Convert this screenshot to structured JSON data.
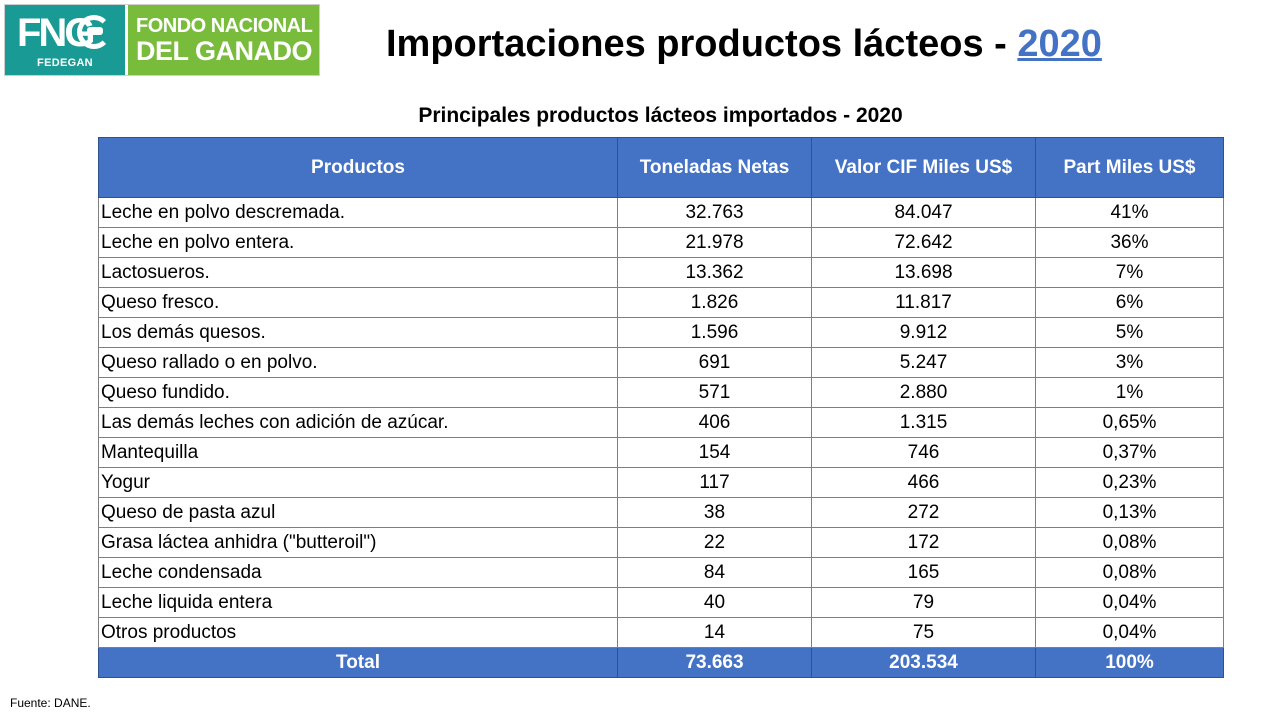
{
  "logo": {
    "acronym": "FNG",
    "sub": "FEDEGAN",
    "line1": "FONDO NACIONAL",
    "line2": "DEL GANADO",
    "colors": {
      "teal": "#1a9a94",
      "green": "#79bc3c"
    }
  },
  "header": {
    "title_prefix": "Importaciones productos lácteos - ",
    "title_year": "2020",
    "year_color": "#4472c4"
  },
  "table": {
    "caption": "Principales productos lácteos importados - 2020",
    "header_color": "#4472c4",
    "columns": [
      "Productos",
      "Toneladas Netas",
      "Valor  CIF Miles US$",
      "Part Miles US$"
    ],
    "rows": [
      {
        "product": "Leche en polvo descremada.",
        "tons": "32.763",
        "value": "84.047",
        "share": "41%"
      },
      {
        "product": "Leche en polvo entera.",
        "tons": "21.978",
        "value": "72.642",
        "share": "36%"
      },
      {
        "product": "Lactosueros.",
        "tons": "13.362",
        "value": "13.698",
        "share": "7%"
      },
      {
        "product": "Queso fresco.",
        "tons": "1.826",
        "value": "11.817",
        "share": "6%"
      },
      {
        "product": "Los demás quesos.",
        "tons": "1.596",
        "value": "9.912",
        "share": "5%"
      },
      {
        "product": "Queso rallado o en polvo.",
        "tons": "691",
        "value": "5.247",
        "share": "3%"
      },
      {
        "product": "Queso fundido.",
        "tons": "571",
        "value": "2.880",
        "share": "1%"
      },
      {
        "product": "Las demás leches con adición de azúcar.",
        "tons": "406",
        "value": "1.315",
        "share": "0,65%"
      },
      {
        "product": "Mantequilla",
        "tons": "154",
        "value": "746",
        "share": "0,37%"
      },
      {
        "product": "Yogur",
        "tons": "117",
        "value": "466",
        "share": "0,23%"
      },
      {
        "product": "Queso de pasta azul",
        "tons": "38",
        "value": "272",
        "share": "0,13%"
      },
      {
        "product": "Grasa láctea anhidra (\"butteroil\")",
        "tons": "22",
        "value": "172",
        "share": "0,08%"
      },
      {
        "product": "Leche condensada",
        "tons": "84",
        "value": "165",
        "share": "0,08%"
      },
      {
        "product": "Leche liquida entera",
        "tons": "40",
        "value": "79",
        "share": "0,04%"
      },
      {
        "product": "Otros productos",
        "tons": "14",
        "value": "75",
        "share": "0,04%"
      }
    ],
    "total": {
      "label": "Total",
      "tons": "73.663",
      "value": "203.534",
      "share": "100%"
    }
  },
  "footer": {
    "source": "Fuente: DANE."
  }
}
